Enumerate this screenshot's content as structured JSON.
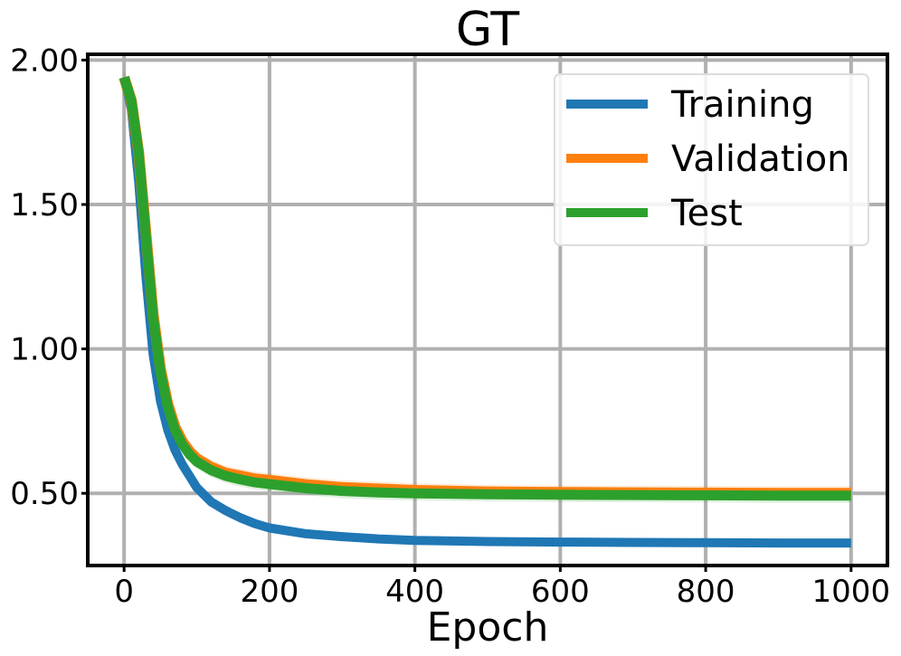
{
  "chart_data": {
    "type": "line",
    "title": "GT",
    "xlabel": "Epoch",
    "ylabel": "",
    "xlim": [
      -50,
      1050
    ],
    "ylim": [
      0.25,
      2.02
    ],
    "xticks": [
      0,
      200,
      400,
      600,
      800,
      1000
    ],
    "xtick_labels": [
      "0",
      "200",
      "400",
      "600",
      "800",
      "1000"
    ],
    "yticks": [
      0.5,
      1.0,
      1.5,
      2.0
    ],
    "ytick_labels": [
      "0.50",
      "1.00",
      "1.50",
      "2.00"
    ],
    "grid": true,
    "legend_position": "top-right",
    "x": [
      0,
      10,
      20,
      30,
      40,
      50,
      60,
      70,
      80,
      90,
      100,
      120,
      140,
      160,
      180,
      200,
      250,
      300,
      350,
      400,
      500,
      600,
      700,
      800,
      900,
      1000
    ],
    "series": [
      {
        "name": "Training",
        "color": "#1f77b4",
        "values": [
          1.94,
          1.83,
          1.58,
          1.25,
          0.98,
          0.82,
          0.72,
          0.65,
          0.6,
          0.56,
          0.52,
          0.47,
          0.44,
          0.415,
          0.395,
          0.38,
          0.36,
          0.35,
          0.342,
          0.337,
          0.333,
          0.331,
          0.33,
          0.329,
          0.328,
          0.328
        ]
      },
      {
        "name": "Validation",
        "color": "#ff7f0e",
        "values": [
          1.94,
          1.86,
          1.68,
          1.4,
          1.12,
          0.93,
          0.81,
          0.73,
          0.68,
          0.645,
          0.62,
          0.59,
          0.57,
          0.56,
          0.55,
          0.545,
          0.53,
          0.52,
          0.515,
          0.51,
          0.505,
          0.503,
          0.502,
          0.501,
          0.5,
          0.5
        ]
      },
      {
        "name": "Test",
        "color": "#2ca02c",
        "values": [
          1.94,
          1.86,
          1.68,
          1.39,
          1.11,
          0.92,
          0.8,
          0.72,
          0.67,
          0.635,
          0.61,
          0.58,
          0.56,
          0.548,
          0.538,
          0.532,
          0.518,
          0.508,
          0.503,
          0.5,
          0.497,
          0.495,
          0.494,
          0.493,
          0.492,
          0.492
        ]
      }
    ]
  }
}
